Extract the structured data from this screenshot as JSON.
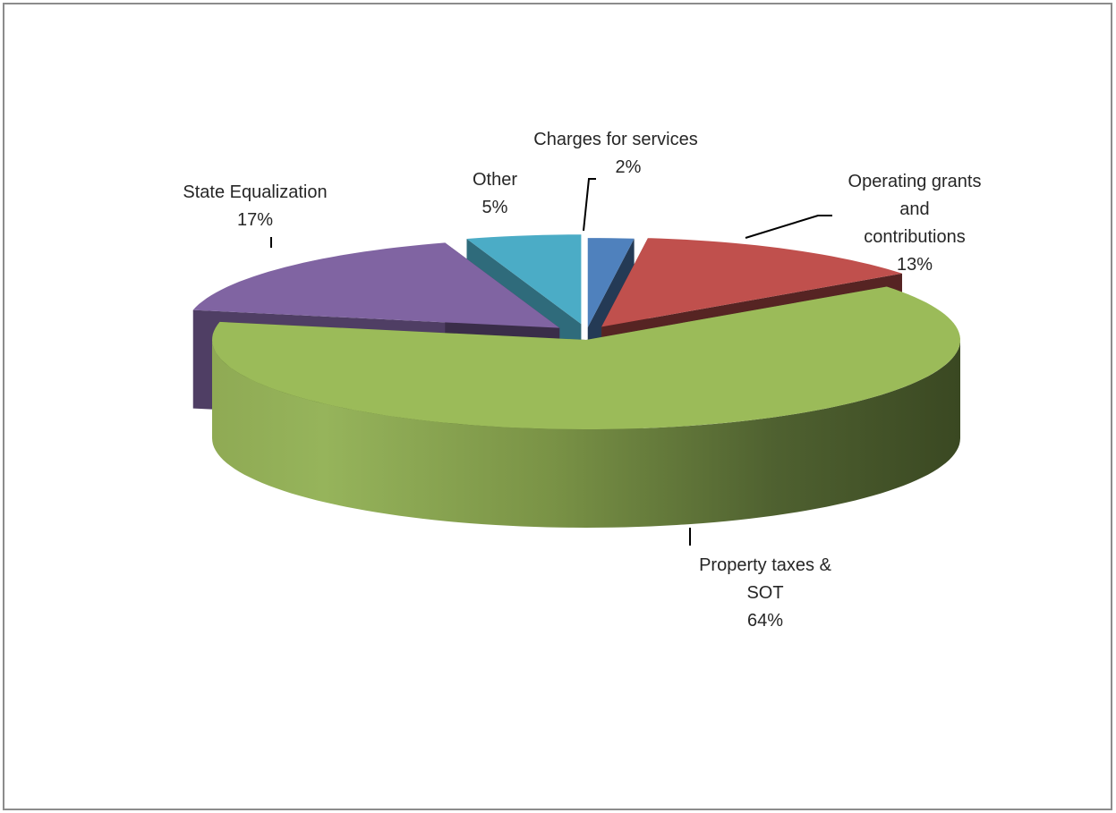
{
  "chart_data": {
    "type": "pie",
    "style": "3d-exploded",
    "title": "",
    "slices": [
      {
        "label": "Charges for services",
        "pct_label": "2%",
        "value": 2,
        "color": "#4f81bd"
      },
      {
        "label": "Operating grants and contributions",
        "label_lines": [
          "Operating grants",
          "and",
          "contributions"
        ],
        "pct_label": "13%",
        "value": 13,
        "color": "#c0504d"
      },
      {
        "label": "Property taxes & SOT",
        "label_lines": [
          "Property taxes &",
          "SOT"
        ],
        "pct_label": "64%",
        "value": 64,
        "color": "#9bbb59"
      },
      {
        "label": "State Equalization",
        "pct_label": "17%",
        "value": 17,
        "color": "#8064a2"
      },
      {
        "label": "Other",
        "pct_label": "5%",
        "value": 5,
        "color": "#4bacc6"
      }
    ],
    "legend": "none"
  }
}
